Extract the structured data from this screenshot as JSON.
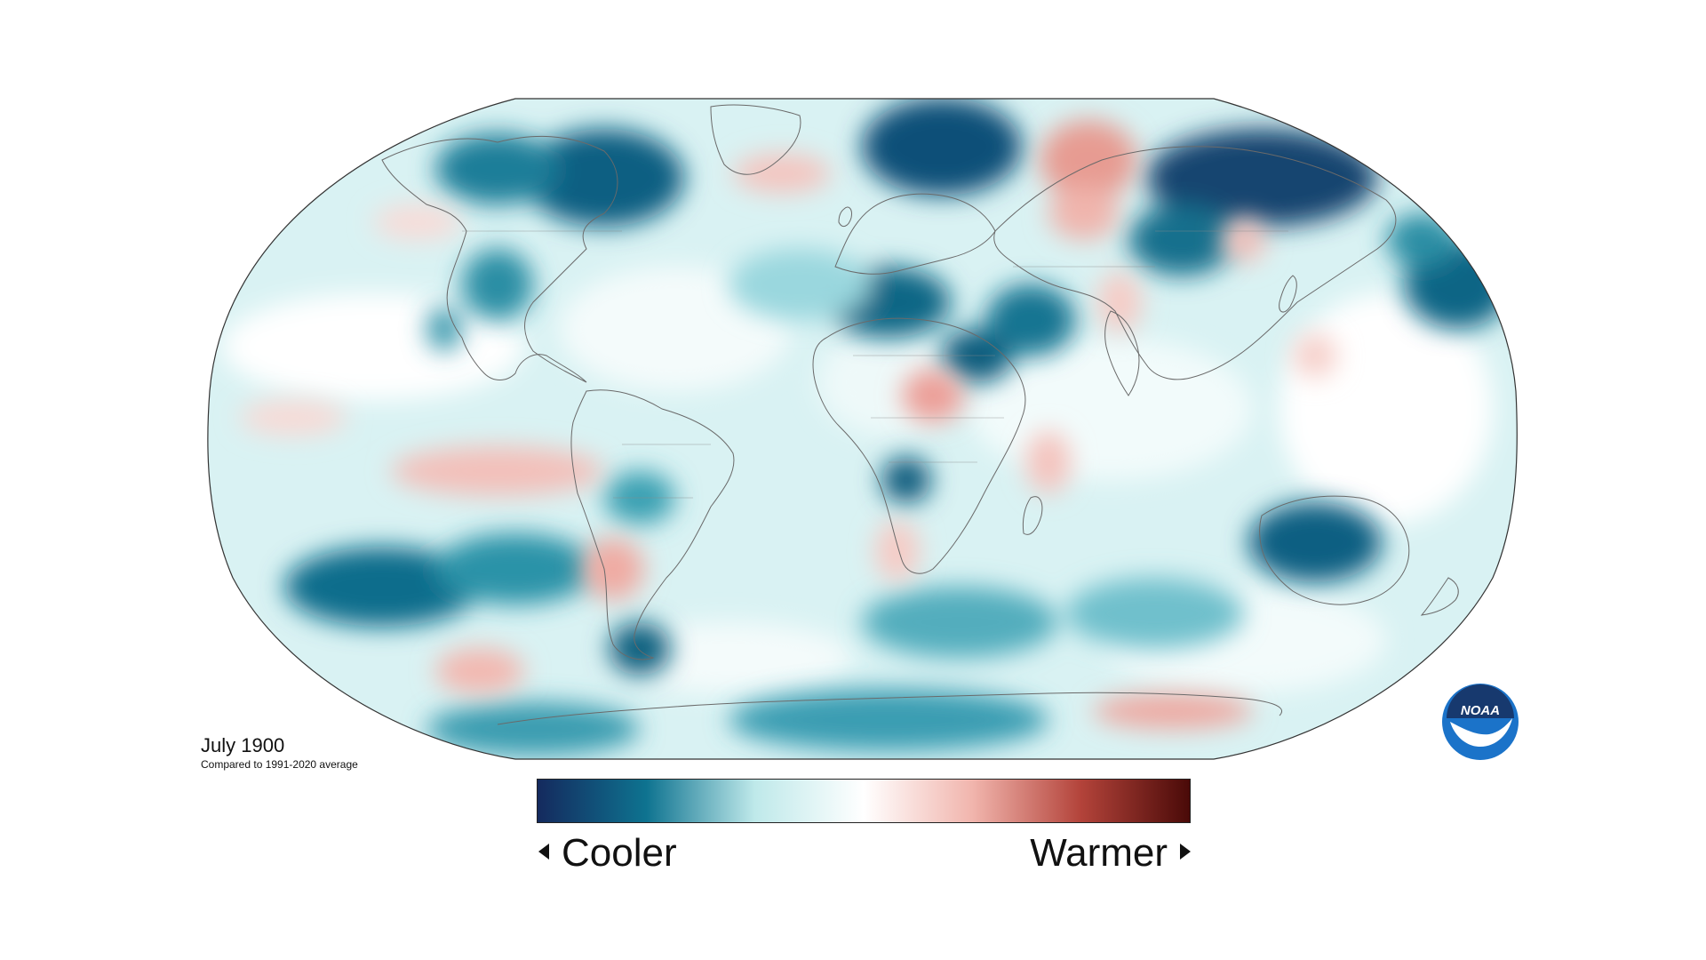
{
  "map": {
    "date_label": "July 1900",
    "comparison_label": "Compared to 1991-2020 average",
    "projection": "Robinson (world)",
    "palette": {
      "coolest": "#142a5e",
      "cool": "#0e7390",
      "mild_cool": "#9fdde2",
      "neutral": "#ffffff",
      "mild_warm": "#f0b2aa",
      "warm": "#b3433a",
      "warmest": "#4a0a08"
    },
    "ocean_base_color": "#d6f1f2",
    "land_outline_color": "#666666"
  },
  "legend": {
    "cooler_label": "Cooler",
    "warmer_label": "Warmer",
    "gradient": [
      "#142a5e",
      "#0e7390",
      "#bfe9ea",
      "#ffffff",
      "#f1b5ad",
      "#b3433a",
      "#4a0a08"
    ]
  },
  "logo": {
    "text": "NOAA",
    "icon": "noaa-logo-icon",
    "colors": {
      "outer": "#1b73c9",
      "inner": "#17396e",
      "bird": "#ffffff"
    }
  }
}
